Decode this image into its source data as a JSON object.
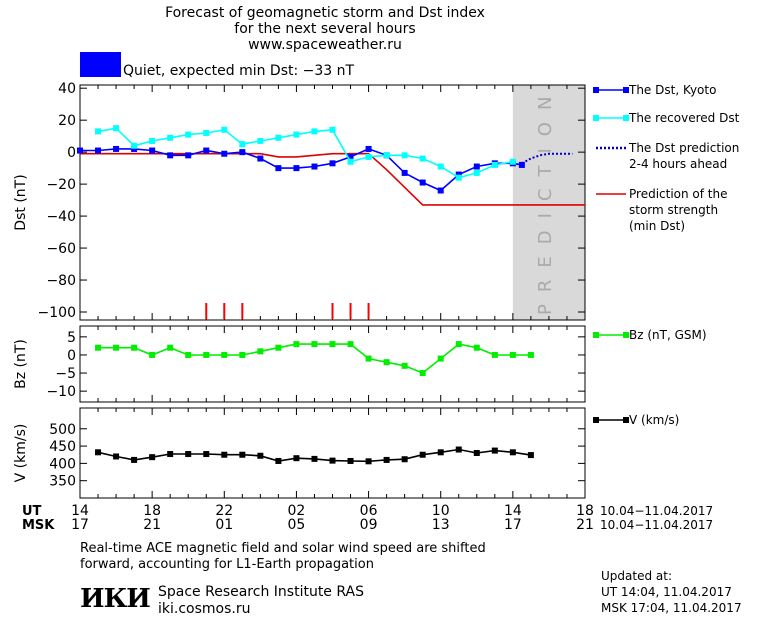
{
  "header": {
    "title_line1": "Forecast of geomagnetic storm and Dst index",
    "title_line2": "for the next several hours",
    "site": "www.spaceweather.ru",
    "status_color": "#0000ff",
    "status_text": "Quiet, expected min Dst: −33 nT"
  },
  "footer": {
    "note_line1": "Real-time ACE magnetic field and solar wind speed are shifted",
    "note_line2": "forward, accounting for L1-Earth propagation",
    "institute": "Space Research Institute RAS",
    "institute_url": "iki.cosmos.ru",
    "logo_text": "ИКИ",
    "updated_label": "Updated at:",
    "updated_ut": "UT   14:04, 11.04.2017",
    "updated_msk": "MSK 17:04, 11.04.2017"
  },
  "chart_data": {
    "type": "line",
    "x_axis": {
      "ut_label": "UT",
      "msk_label": "MSK",
      "ut_ticks": [
        "14",
        "18",
        "22",
        "02",
        "06",
        "10",
        "14",
        "18"
      ],
      "msk_ticks": [
        "17",
        "21",
        "01",
        "05",
        "09",
        "13",
        "17",
        "21"
      ],
      "ut_range": "10.04−11.04.2017",
      "msk_range": "10.04−11.04.2017",
      "hour_range": [
        14,
        42
      ]
    },
    "prediction_band": {
      "from_hour": 38,
      "to_hour": 42,
      "label": "PREDICTION",
      "color": "#d9d9d9"
    },
    "dst_panel": {
      "ylabel": "Dst (nT)",
      "ylim": [
        -105,
        42
      ],
      "yticks": [
        40,
        20,
        0,
        -20,
        -40,
        -60,
        -80,
        -100
      ],
      "series": [
        {
          "name": "The Dst, Kyoto",
          "color": "#0000ff",
          "marker": "square",
          "style": "solid",
          "x": [
            14,
            15,
            16,
            17,
            18,
            19,
            20,
            21,
            22,
            23,
            24,
            25,
            26,
            27,
            28,
            29,
            30,
            31,
            32,
            33,
            34,
            35,
            36,
            37,
            38,
            38.5
          ],
          "y": [
            1,
            1,
            2,
            2,
            1,
            -2,
            -2,
            1,
            -1,
            0,
            -4,
            -10,
            -10,
            -9,
            -7,
            -3,
            2,
            -2,
            -13,
            -19,
            -24,
            -14,
            -9,
            -7,
            -7,
            -8
          ]
        },
        {
          "name": "The recovered Dst",
          "color": "#00ffff",
          "marker": "square",
          "style": "solid",
          "x": [
            15,
            16,
            17,
            18,
            19,
            20,
            21,
            22,
            23,
            24,
            25,
            26,
            27,
            28,
            29,
            30,
            31,
            32,
            33,
            34,
            35,
            36,
            37,
            38
          ],
          "y": [
            13,
            15,
            4,
            7,
            9,
            11,
            12,
            14,
            5,
            7,
            9,
            11,
            13,
            14,
            -6,
            -3,
            -2,
            -2,
            -4,
            -9,
            -16,
            -13,
            -8,
            -6
          ]
        },
        {
          "name": "The Dst prediction\n2-4 hours ahead",
          "color": "#0000cc",
          "marker": "none",
          "style": "dotted",
          "x": [
            38.5,
            39,
            39.5,
            40,
            40.5,
            41,
            41.3
          ],
          "y": [
            -7,
            -4,
            -2,
            -1,
            -1,
            -1,
            -1
          ]
        },
        {
          "name": "Prediction of the\nstorm strength\n(min Dst)",
          "color": "#e00000",
          "marker": "none",
          "style": "solid",
          "x": [
            14,
            24,
            25,
            26,
            27,
            28,
            29,
            30,
            31,
            32,
            33,
            42
          ],
          "y": [
            -1,
            -1,
            -3,
            -3,
            -2,
            -1,
            -1,
            -1,
            -11,
            -22,
            -33,
            -33
          ]
        }
      ],
      "event_markers_hours": [
        21,
        22,
        23,
        28,
        29,
        30
      ]
    },
    "bz_panel": {
      "ylabel": "Bz (nT)",
      "ylim": [
        -13,
        8
      ],
      "yticks": [
        5,
        0,
        -5,
        -10
      ],
      "series": [
        {
          "name": "Bz (nT, GSM)",
          "color": "#00ee00",
          "marker": "square",
          "x": [
            15,
            16,
            17,
            18,
            19,
            20,
            21,
            22,
            23,
            24,
            25,
            26,
            27,
            28,
            29,
            30,
            31,
            32,
            33,
            34,
            35,
            36,
            37,
            38,
            39
          ],
          "y": [
            2,
            2,
            2,
            0,
            2,
            0,
            0,
            0,
            0,
            1,
            2,
            3,
            3,
            3,
            3,
            -1,
            -2,
            -3,
            -5,
            -1,
            3,
            2,
            0,
            0,
            0
          ]
        }
      ]
    },
    "v_panel": {
      "ylabel": "V (km/s)",
      "ylim": [
        300,
        560
      ],
      "yticks": [
        500,
        450,
        400,
        350
      ],
      "series": [
        {
          "name": "V (km/s)",
          "color": "#000000",
          "marker": "square",
          "x": [
            15,
            16,
            17,
            18,
            19,
            20,
            21,
            22,
            23,
            24,
            25,
            26,
            27,
            28,
            29,
            30,
            31,
            32,
            33,
            34,
            35,
            36,
            37,
            38,
            39
          ],
          "y": [
            432,
            420,
            410,
            418,
            427,
            427,
            427,
            425,
            425,
            422,
            407,
            415,
            413,
            408,
            407,
            406,
            410,
            412,
            425,
            432,
            440,
            430,
            437,
            432,
            424
          ]
        }
      ]
    }
  }
}
